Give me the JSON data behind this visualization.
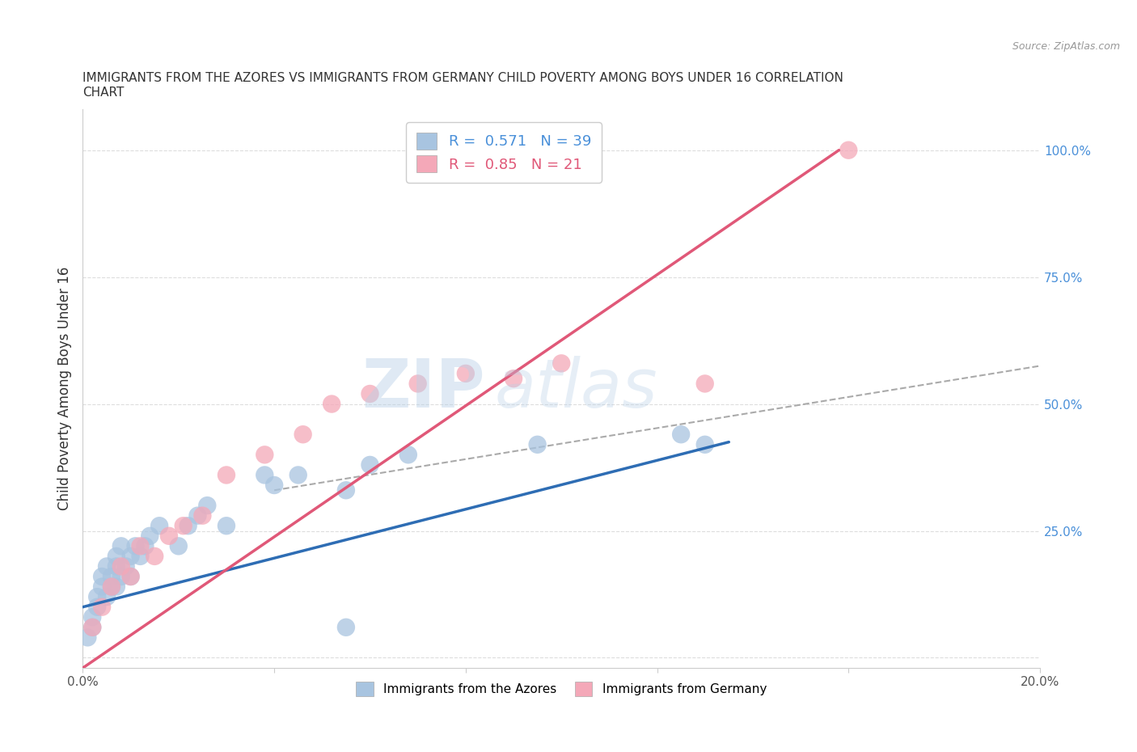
{
  "title": "IMMIGRANTS FROM THE AZORES VS IMMIGRANTS FROM GERMANY CHILD POVERTY AMONG BOYS UNDER 16 CORRELATION\nCHART",
  "source": "Source: ZipAtlas.com",
  "ylabel": "Child Poverty Among Boys Under 16",
  "xlim": [
    0.0,
    0.2
  ],
  "ylim": [
    -0.02,
    1.08
  ],
  "xticks": [
    0.0,
    0.04,
    0.08,
    0.12,
    0.16,
    0.2
  ],
  "xticklabels": [
    "0.0%",
    "",
    "",
    "",
    "",
    "20.0%"
  ],
  "yticks": [
    0.0,
    0.25,
    0.5,
    0.75,
    1.0
  ],
  "yticklabels": [
    "",
    "25.0%",
    "50.0%",
    "75.0%",
    "100.0%"
  ],
  "azores_color": "#a8c4e0",
  "germany_color": "#f4a8b8",
  "azores_line_color": "#2e6db4",
  "germany_line_color": "#e05878",
  "azores_R": 0.571,
  "azores_N": 39,
  "germany_R": 0.85,
  "germany_N": 21,
  "watermark_text": "ZIP",
  "watermark_text2": "atlas",
  "background_color": "#ffffff",
  "azores_x": [
    0.001,
    0.002,
    0.002,
    0.003,
    0.003,
    0.004,
    0.004,
    0.005,
    0.005,
    0.006,
    0.006,
    0.007,
    0.007,
    0.007,
    0.008,
    0.008,
    0.009,
    0.01,
    0.01,
    0.011,
    0.012,
    0.013,
    0.014,
    0.016,
    0.02,
    0.022,
    0.024,
    0.026,
    0.03,
    0.038,
    0.04,
    0.045,
    0.055,
    0.06,
    0.068,
    0.095,
    0.125,
    0.13,
    0.055
  ],
  "azores_y": [
    0.04,
    0.06,
    0.08,
    0.1,
    0.12,
    0.14,
    0.16,
    0.12,
    0.18,
    0.14,
    0.16,
    0.18,
    0.14,
    0.2,
    0.16,
    0.22,
    0.18,
    0.16,
    0.2,
    0.22,
    0.2,
    0.22,
    0.24,
    0.26,
    0.22,
    0.26,
    0.28,
    0.3,
    0.26,
    0.36,
    0.34,
    0.36,
    0.33,
    0.38,
    0.4,
    0.42,
    0.44,
    0.42,
    0.06
  ],
  "germany_x": [
    0.002,
    0.004,
    0.006,
    0.008,
    0.01,
    0.012,
    0.015,
    0.018,
    0.021,
    0.025,
    0.03,
    0.038,
    0.046,
    0.052,
    0.06,
    0.07,
    0.08,
    0.09,
    0.1,
    0.13,
    0.16
  ],
  "germany_y": [
    0.06,
    0.1,
    0.14,
    0.18,
    0.16,
    0.22,
    0.2,
    0.24,
    0.26,
    0.28,
    0.36,
    0.4,
    0.44,
    0.5,
    0.52,
    0.54,
    0.56,
    0.55,
    0.58,
    0.54,
    1.0
  ],
  "blue_line_x0": 0.0,
  "blue_line_y0": 0.1,
  "blue_line_x1": 0.135,
  "blue_line_y1": 0.425,
  "pink_line_x0": 0.0,
  "pink_line_y0": -0.02,
  "pink_line_x1": 0.158,
  "pink_line_y1": 1.0,
  "dash_line_x0": 0.04,
  "dash_line_y0": 0.33,
  "dash_line_x1": 0.2,
  "dash_line_y1": 0.575
}
